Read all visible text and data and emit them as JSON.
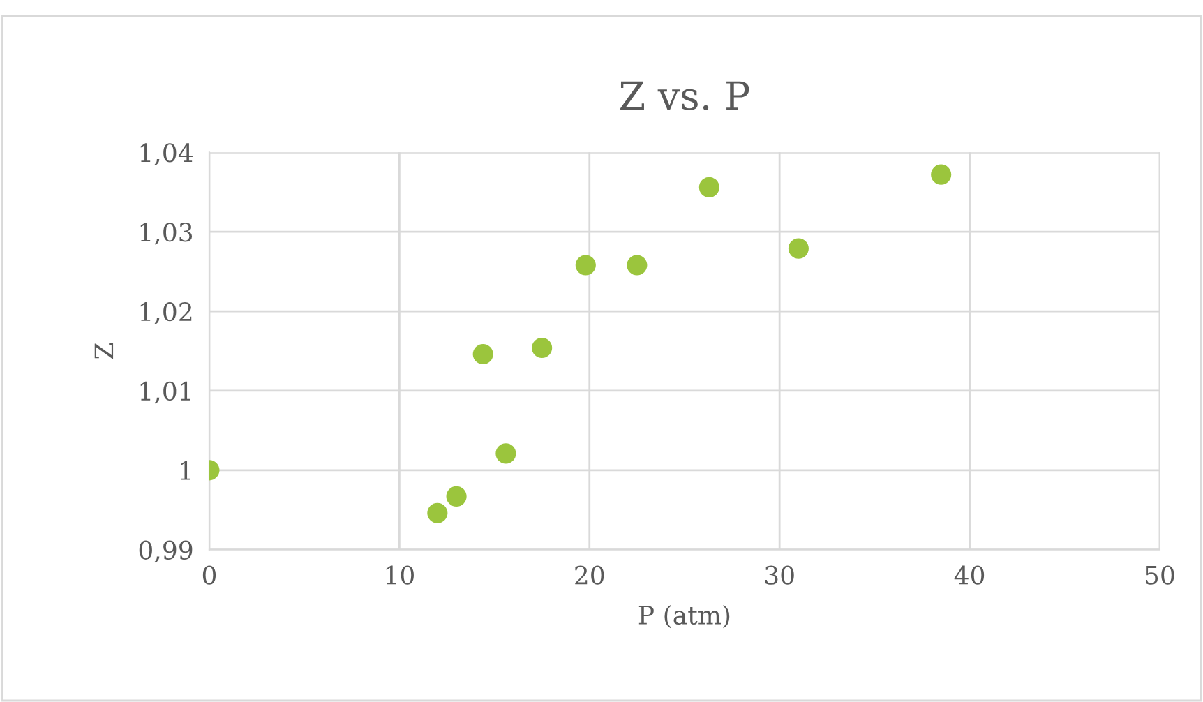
{
  "chart_data": {
    "type": "scatter",
    "title": "Z vs. P",
    "xlabel": "P (atm)",
    "ylabel": "Z",
    "x": [
      0,
      12.0,
      13.0,
      14.4,
      15.6,
      17.5,
      19.8,
      22.5,
      26.3,
      31.0,
      38.5
    ],
    "series": [
      {
        "color": "#9bc53d",
        "values": [
          1.0,
          0.9946,
          0.9967,
          1.0146,
          1.0021,
          1.0154,
          1.0258,
          1.0258,
          1.0356,
          1.0279,
          1.0372
        ]
      }
    ],
    "xlim": [
      0,
      50
    ],
    "xticks": [
      0,
      10,
      20,
      30,
      40,
      50
    ],
    "ylim": [
      0.99,
      1.04
    ],
    "yticks": [
      {
        "value": 0.99,
        "label": "0,99"
      },
      1,
      {
        "value": 1.01,
        "label": "1,01"
      },
      {
        "value": 1.02,
        "label": "1,02"
      },
      {
        "value": 1.03,
        "label": "1,03"
      },
      {
        "value": 1.04,
        "label": "1,04"
      }
    ],
    "grid": true,
    "marker": "circle"
  }
}
